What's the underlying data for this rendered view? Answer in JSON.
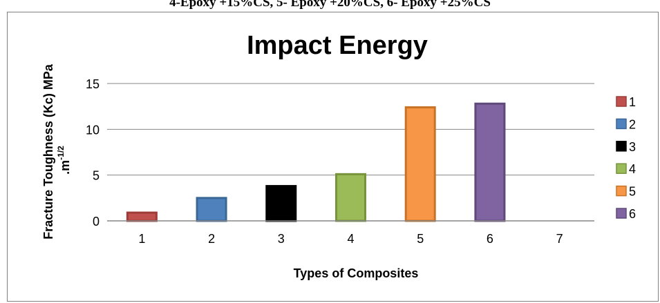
{
  "caption": "4-Epoxy +15%CS, 5- Epoxy +20%CS, 6- Epoxy +25%CS",
  "chart_data": {
    "type": "bar",
    "title": "Impact Energy",
    "xlabel": "Types of Composites",
    "ylabel": "Fracture Toughness (Kc) MPa",
    "ylabel_unit_base": ".m",
    "ylabel_unit_exp": "-1/2",
    "categories": [
      "1",
      "2",
      "3",
      "4",
      "5",
      "6",
      "7"
    ],
    "ylim": [
      0,
      15
    ],
    "yticks": [
      0,
      5,
      10,
      15
    ],
    "grid": true,
    "legend_position": "right",
    "series": [
      {
        "name": "1",
        "category": "1",
        "value": 0.9,
        "fill": "#c0504d",
        "stroke": "#9c3b38"
      },
      {
        "name": "2",
        "category": "2",
        "value": 2.5,
        "fill": "#4f81bd",
        "stroke": "#3a6796"
      },
      {
        "name": "3",
        "category": "3",
        "value": 3.8,
        "fill": "#000000",
        "stroke": "#000000"
      },
      {
        "name": "4",
        "category": "4",
        "value": 5.1,
        "fill": "#9bbb59",
        "stroke": "#77933c"
      },
      {
        "name": "5",
        "category": "5",
        "value": 12.4,
        "fill": "#f79646",
        "stroke": "#c97326"
      },
      {
        "name": "6",
        "category": "6",
        "value": 12.8,
        "fill": "#8064a2",
        "stroke": "#5f497a"
      }
    ]
  }
}
